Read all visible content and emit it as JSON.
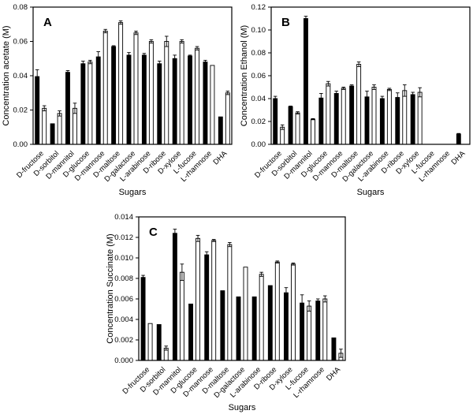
{
  "figure": {
    "background": "#ffffff",
    "axis_color": "#000000",
    "bar_fill_series1": "#000000",
    "bar_fill_series2": "#ffffff",
    "xlabel": "Sugars",
    "categories": [
      "D-fructose",
      "D-sorbitol",
      "D-mannitol",
      "D-glucose",
      "D-mannose",
      "D-maltose",
      "D-galactose",
      "L-arabinose",
      "D-ribose",
      "D-xylose",
      "L-fucose",
      "L-rhamnose",
      "DHA"
    ]
  },
  "chart_data": [
    {
      "type": "bar",
      "panel": "A",
      "ylabel": "Concentration acetate (M)",
      "xlabel": "Sugars",
      "ylim": [
        0,
        0.08
      ],
      "ytick_step": 0.02,
      "ytick_decimals": 2,
      "grid": false,
      "legend": "none",
      "categories": [
        "D-fructose",
        "D-sorbitol",
        "D-mannitol",
        "D-glucose",
        "D-mannose",
        "D-maltose",
        "D-galactose",
        "L-arabinose",
        "D-ribose",
        "D-xylose",
        "L-fucose",
        "L-rhamnose",
        "DHA"
      ],
      "series": [
        {
          "name": "black",
          "values": [
            0.0395,
            0.012,
            0.042,
            0.047,
            0.051,
            0.057,
            0.052,
            0.052,
            0.047,
            0.05,
            0.0515,
            0.048,
            0.016
          ],
          "errors": [
            0.004,
            0,
            0.001,
            0.0015,
            0.003,
            0.0005,
            0.0015,
            0.001,
            0.0015,
            0.002,
            0.0005,
            0.001,
            0
          ]
        },
        {
          "name": "white",
          "values": [
            0.021,
            0.018,
            0.021,
            0.048,
            0.066,
            0.071,
            0.065,
            0.06,
            0.06,
            0.06,
            0.056,
            0.046,
            0.03
          ],
          "errors": [
            0.0015,
            0.0015,
            0.003,
            0.001,
            0.001,
            0.001,
            0.001,
            0.001,
            0.003,
            0.001,
            0.001,
            0,
            0.001
          ]
        }
      ]
    },
    {
      "type": "bar",
      "panel": "B",
      "ylabel": "Concentration Ethanol (M)",
      "xlabel": "Sugars",
      "ylim": [
        0,
        0.12
      ],
      "ytick_step": 0.02,
      "ytick_decimals": 2,
      "grid": false,
      "legend": "none",
      "categories": [
        "D-fructose",
        "D-sorbitol",
        "D-mannitol",
        "D-glucose",
        "D-mannose",
        "D-maltose",
        "D-galactose",
        "L-arabinose",
        "D-ribose",
        "D-xylose",
        "L-fucose",
        "L-rhamnose",
        "DHA"
      ],
      "series": [
        {
          "name": "black",
          "values": [
            0.04,
            0.033,
            0.11,
            0.0405,
            0.0445,
            0.051,
            0.0415,
            0.04,
            0.041,
            0.0435,
            0,
            0,
            0.009
          ],
          "errors": [
            0.002,
            0.0005,
            0.002,
            0.004,
            0.002,
            0.001,
            0.005,
            0.002,
            0.004,
            0.002,
            0,
            0,
            0.0005
          ]
        },
        {
          "name": "white",
          "values": [
            0.015,
            0.0275,
            0.022,
            0.053,
            0.049,
            0.07,
            0.05,
            0.048,
            0.047,
            0.0455,
            0,
            0,
            0
          ],
          "errors": [
            0.002,
            0.001,
            0.0005,
            0.002,
            0.001,
            0.002,
            0.002,
            0.001,
            0.005,
            0.004,
            0,
            0,
            0
          ]
        }
      ]
    },
    {
      "type": "bar",
      "panel": "C",
      "ylabel": "Concentration Succinate (M)",
      "xlabel": "Sugars",
      "ylim": [
        0,
        0.014
      ],
      "ytick_step": 0.002,
      "ytick_decimals": 3,
      "grid": false,
      "legend": "none",
      "categories": [
        "D-fructose",
        "D-sorbitol",
        "D-mannitol",
        "D-glucose",
        "D-mannose",
        "D-maltose",
        "D-galactose",
        "L-arabinose",
        "D-ribose",
        "D-xylose",
        "L-fucose",
        "L-rhamnose",
        "DHA"
      ],
      "series": [
        {
          "name": "black",
          "values": [
            0.0081,
            0.0035,
            0.0124,
            0.0055,
            0.0103,
            0.0068,
            0.0062,
            0.0062,
            0.0073,
            0.0066,
            0.0056,
            0.0058,
            0.0022
          ],
          "errors": [
            0.0002,
            0,
            0.0004,
            0,
            0.0003,
            0,
            0,
            0,
            0,
            0.0005,
            0.0008,
            0.0002,
            0
          ]
        },
        {
          "name": "white",
          "values": [
            0.0036,
            0.0012,
            0.0086,
            0.0119,
            0.0117,
            0.0113,
            0.0091,
            0.0084,
            0.0096,
            0.0094,
            0.0053,
            0.006,
            0.0007
          ],
          "errors": [
            0,
            0.0002,
            0.0008,
            0.0003,
            0.0001,
            0.0002,
            0,
            0.0002,
            0.0001,
            0.0001,
            0.0005,
            0.0003,
            0.0004
          ]
        }
      ]
    }
  ]
}
